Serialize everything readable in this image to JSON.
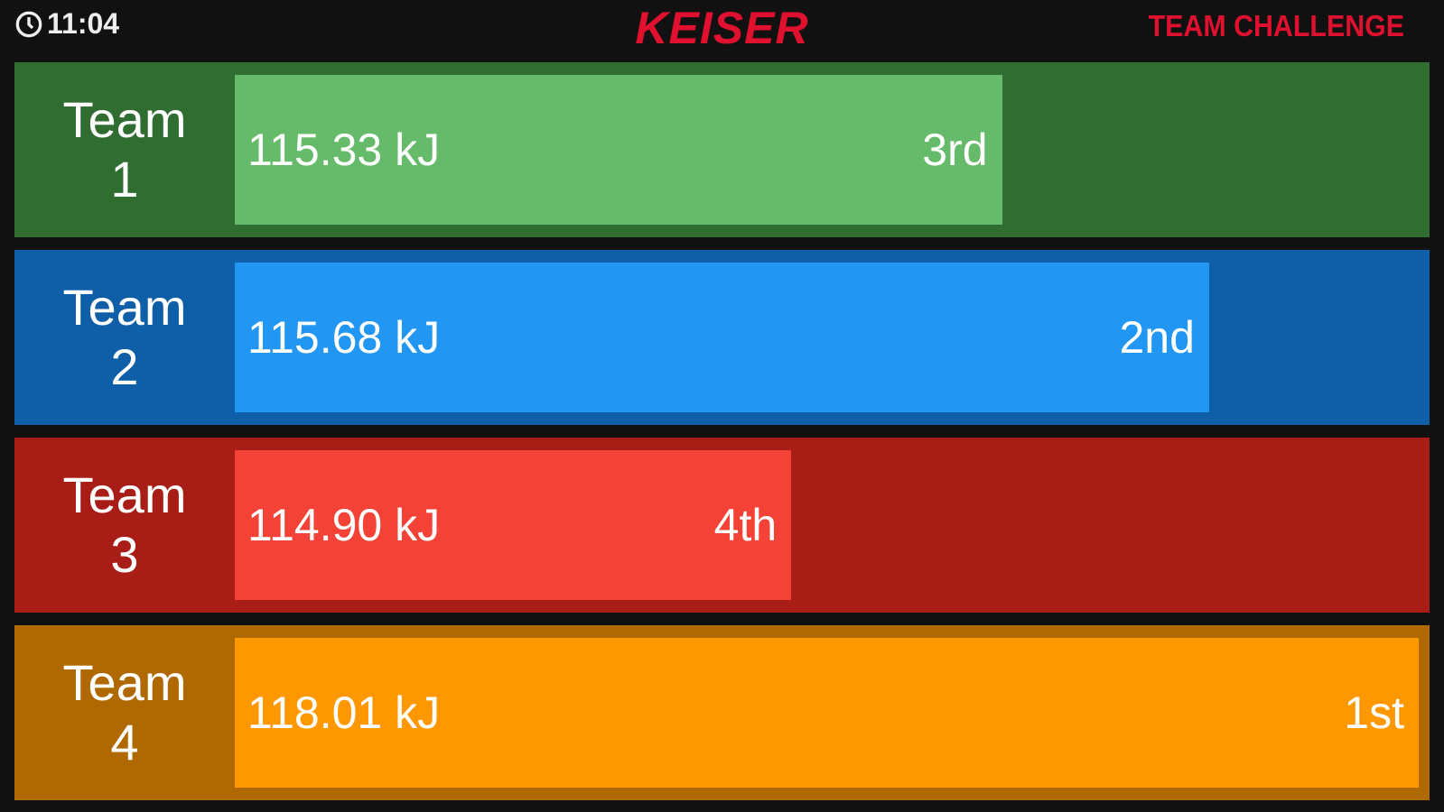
{
  "header": {
    "time": "11:04",
    "logo": "KEISER",
    "mode": "TEAM CHALLENGE",
    "clock_icon": "clock-icon"
  },
  "teams": [
    {
      "label": "Team",
      "number": "1",
      "value": "115.33 kJ",
      "rank": "3rd",
      "fill": 0.648,
      "bg": "#2f6d31",
      "bar": "#66bb6a"
    },
    {
      "label": "Team",
      "number": "2",
      "value": "115.68 kJ",
      "rank": "2nd",
      "fill": 0.823,
      "bg": "#0e5ea8",
      "bar": "#2196f3"
    },
    {
      "label": "Team",
      "number": "3",
      "value": "114.90 kJ",
      "rank": "4th",
      "fill": 0.47,
      "bg": "#a81d15",
      "bar": "#f44336"
    },
    {
      "label": "Team",
      "number": "4",
      "value": "118.01 kJ",
      "rank": "1st",
      "fill": 1.0,
      "bg": "#b06800",
      "bar": "#ff9800"
    }
  ]
}
